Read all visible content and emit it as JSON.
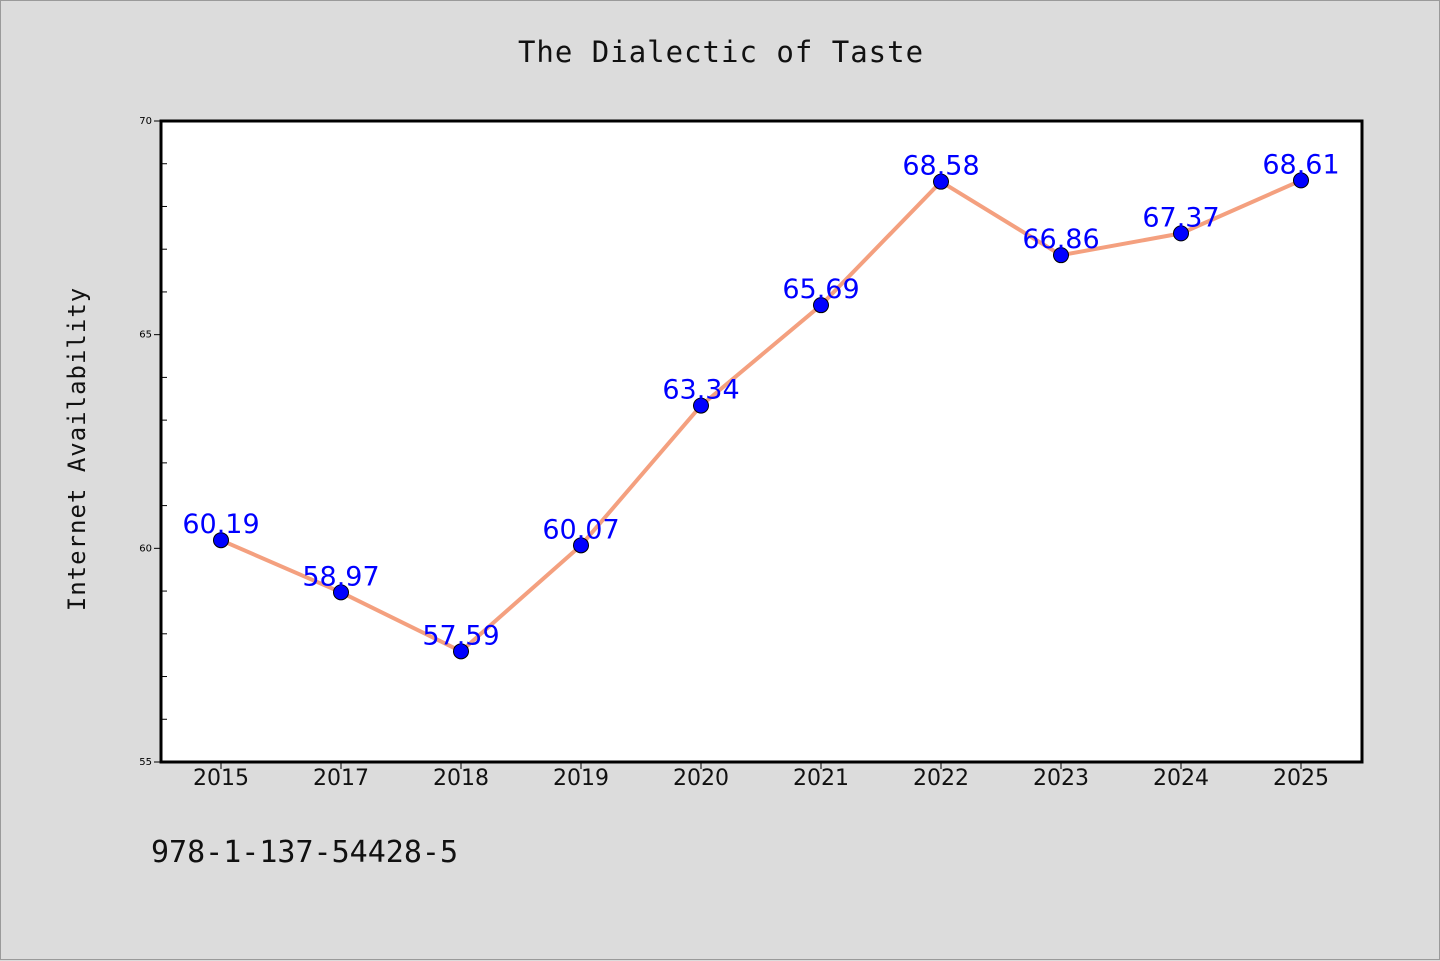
{
  "chart_data": {
    "type": "line",
    "title": "The Dialectic of Taste",
    "xlabel": "",
    "ylabel": "Internet Availability",
    "categories": [
      "2015",
      "2017",
      "2018",
      "2019",
      "2020",
      "2021",
      "2022",
      "2023",
      "2024",
      "2025"
    ],
    "series": [
      {
        "values": [
          60.19,
          58.97,
          57.59,
          60.07,
          63.34,
          65.69,
          68.58,
          66.86,
          67.37,
          68.61
        ]
      }
    ],
    "data_labels": [
      "60.19",
      "58.97",
      "57.59",
      "60.07",
      "63.34",
      "65.69",
      "68.58",
      "66.86",
      "67.37",
      "68.61"
    ],
    "ylim": [
      55,
      70
    ],
    "yticks": [
      "55",
      "60",
      "65",
      "70"
    ],
    "grid": false,
    "legend": "none",
    "colors": {
      "line": "#f4a07f",
      "marker": "#0000ff",
      "label": "#0000ff",
      "background": "#dcdcdc",
      "plot_bg": "#ffffff"
    }
  },
  "footer": {
    "code": "978-1-137-54428-5"
  }
}
